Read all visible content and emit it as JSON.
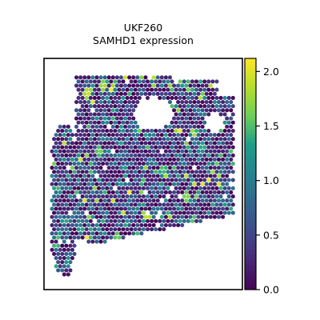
{
  "chart_data": {
    "type": "scatter",
    "title": "UKF260",
    "subtitle": "SAMHD1 expression",
    "xlabel": "",
    "ylabel": "",
    "colorbar": {
      "label": "",
      "range": [
        0.0,
        2.12
      ],
      "ticks": [
        {
          "value": 0.0,
          "label": "0.0"
        },
        {
          "value": 0.5,
          "label": "0.5"
        },
        {
          "value": 1.0,
          "label": "1.0"
        },
        {
          "value": 1.5,
          "label": "1.5"
        },
        {
          "value": 2.0,
          "label": "2.0"
        }
      ],
      "colormap": [
        "#440154",
        "#482777",
        "#3f4a8a",
        "#31678e",
        "#26838f",
        "#1f9d8a",
        "#6cce5a",
        "#b6de2b",
        "#fee825"
      ]
    },
    "x_ticks_visible": false,
    "y_ticks_visible": false,
    "x_range": [
      0,
      100
    ],
    "y_range": [
      0,
      100
    ],
    "spot_summary": {
      "shape": "hexagonal spot grid",
      "regions": [
        {
          "name": "left-strip",
          "x": [
            4,
            16
          ],
          "y": [
            5,
            72
          ]
        },
        {
          "name": "main-tissue",
          "x": [
            16,
            96
          ],
          "y": [
            18,
            93
          ]
        }
      ],
      "holes": [
        {
          "name": "upper-hole",
          "cx": 55,
          "cy": 76,
          "rx": 10,
          "ry": 7
        },
        {
          "name": "right-notch",
          "cx": 86,
          "cy": 72,
          "rx": 5,
          "ry": 4
        }
      ],
      "hotspots": [
        {
          "x": 22,
          "y": 85,
          "value": 2.0
        },
        {
          "x": 30,
          "y": 88,
          "value": 1.9
        },
        {
          "x": 52,
          "y": 32,
          "value": 2.0
        },
        {
          "x": 72,
          "y": 40,
          "value": 1.8
        },
        {
          "x": 60,
          "y": 52,
          "value": 1.6
        },
        {
          "x": 28,
          "y": 60,
          "value": 1.7
        },
        {
          "x": 37,
          "y": 23,
          "value": 1.7
        },
        {
          "x": 45,
          "y": 18,
          "value": 1.9
        },
        {
          "x": 80,
          "y": 62,
          "value": 1.5
        }
      ]
    }
  }
}
